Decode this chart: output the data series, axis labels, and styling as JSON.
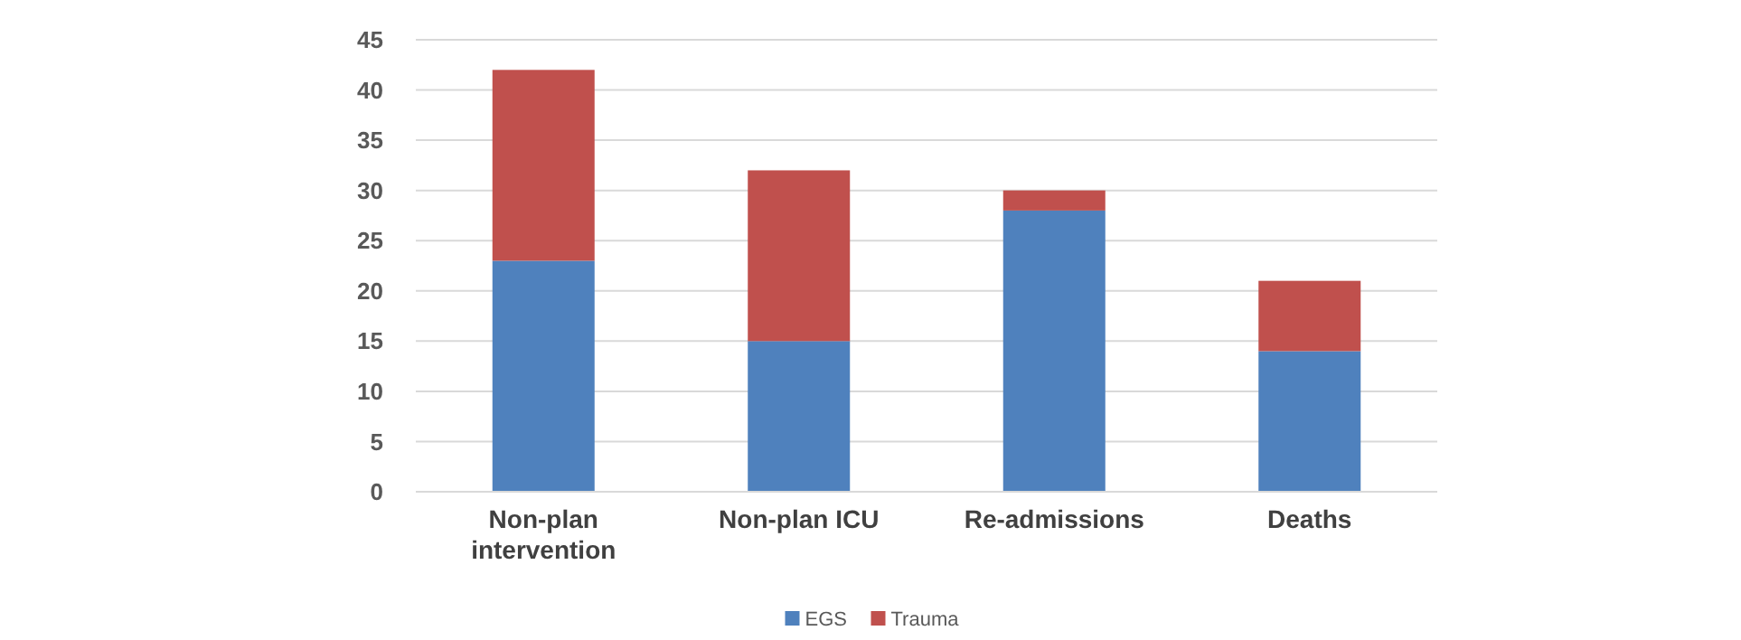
{
  "chart_data": {
    "type": "bar",
    "stacked": true,
    "categories": [
      "Non-plan intervention",
      "Non-plan ICU",
      "Re-admissions",
      "Deaths"
    ],
    "series": [
      {
        "name": "EGS",
        "color": "#4f81bd",
        "values": [
          23,
          15,
          28,
          14
        ]
      },
      {
        "name": "Trauma",
        "color": "#c0504d",
        "values": [
          19,
          17,
          2,
          7
        ]
      }
    ],
    "ylim": [
      0,
      45
    ],
    "yticks": [
      0,
      5,
      10,
      15,
      20,
      25,
      30,
      35,
      40,
      45
    ],
    "grid": "y",
    "legend": "bottom"
  }
}
